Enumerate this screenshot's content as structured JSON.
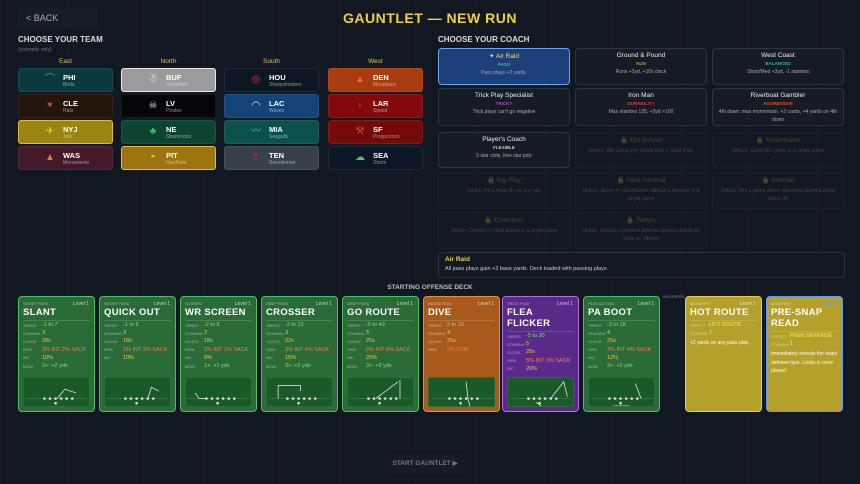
{
  "header": {
    "back_label": "< BACK",
    "title": "GAUNTLET — NEW RUN"
  },
  "team_section": {
    "heading": "CHOOSE YOUR TEAM",
    "note": "(cosmetic only)",
    "divisions": [
      {
        "name": "East",
        "teams": [
          {
            "abbr": "PHI",
            "name": "Birds",
            "bg": "#0b3a3e",
            "icon": "bird-icon"
          },
          {
            "abbr": "CLE",
            "name": "Rats",
            "bg": "#24140a",
            "icon": "rat-icon"
          },
          {
            "abbr": "NYJ",
            "name": "Jets",
            "bg": "#9a8510",
            "icon": "jet-icon"
          },
          {
            "abbr": "WAS",
            "name": "Monuments",
            "bg": "#45192a",
            "icon": "monument-icon"
          }
        ]
      },
      {
        "name": "North",
        "teams": [
          {
            "abbr": "BUF",
            "name": "Snowmen",
            "bg": "#9b9b9b",
            "icon": "snowman-icon",
            "selected": true
          },
          {
            "abbr": "LV",
            "name": "Pirates",
            "bg": "#050608",
            "icon": "skull-icon"
          },
          {
            "abbr": "NE",
            "name": "Shamrocks",
            "bg": "#0d4530",
            "icon": "shamrock-icon"
          },
          {
            "abbr": "PIT",
            "name": "Hardhats",
            "bg": "#9c7510",
            "icon": "hardhat-icon"
          }
        ]
      },
      {
        "name": "South",
        "teams": [
          {
            "abbr": "HOU",
            "name": "Sharpshooters",
            "bg": "#0d1724",
            "icon": "target-icon"
          },
          {
            "abbr": "LAC",
            "name": "Waves",
            "bg": "#124478",
            "icon": "wave-icon"
          },
          {
            "abbr": "MIA",
            "name": "Seagulls",
            "bg": "#0c504c",
            "icon": "seagull-icon"
          },
          {
            "abbr": "TEN",
            "name": "Swordsmen",
            "bg": "#37414c",
            "icon": "sword-icon"
          }
        ]
      },
      {
        "name": "West",
        "teams": [
          {
            "abbr": "DEN",
            "name": "Mountains",
            "bg": "#a83c10",
            "icon": "mountain-icon"
          },
          {
            "abbr": "LAR",
            "name": "Speed",
            "bg": "#820a0a",
            "icon": "speed-icon"
          },
          {
            "abbr": "SF",
            "name": "Prospectors",
            "bg": "#740a0a",
            "icon": "pickaxe-icon"
          },
          {
            "abbr": "SEA",
            "name": "Storm",
            "bg": "#0b1726",
            "icon": "storm-icon"
          }
        ]
      }
    ]
  },
  "coach_section": {
    "heading": "CHOOSE YOUR COACH",
    "coaches": [
      {
        "name": "✦ Air Raid",
        "tag": "PASS",
        "tag_color": "#3ec080",
        "desc": "Pass plays +2 yards.",
        "selected": true
      },
      {
        "name": "Ground & Pound",
        "tag": "RUN",
        "tag_color": "#d08a30",
        "desc": "Runs +2yd, +10s clock"
      },
      {
        "name": "West Coast",
        "tag": "BALANCED",
        "tag_color": "#30b0b0",
        "desc": "Short/Med +3yd, -1 stamina"
      },
      {
        "name": "Trick Play Specialist",
        "tag": "TRICKY",
        "tag_color": "#a050c0",
        "desc": "Trick plays can't go negative"
      },
      {
        "name": "Iron Man",
        "tag": "DURABILITY",
        "tag_color": "#d04040",
        "desc": "Max stamina 125, +2yd >100"
      },
      {
        "name": "Riverboat Gambler",
        "tag": "AGGRESSIVE",
        "tag_color": "#e05030",
        "desc": "4th down: max momentum, +2 cards, +4 yards on 4th down"
      },
      {
        "name": "Player's Coach",
        "tag": "FLEXIBLE",
        "tag_color": "#cccccc",
        "desc": "5 star slots, free star pick"
      },
      {
        "name": "🔒 Old School",
        "desc": "Unlock: Win using only Inside Run + Slant Pass",
        "locked": true
      },
      {
        "name": "🔒 Showmaker",
        "desc": "Unlock: Score 50+ yards in a single game",
        "locked": true
      },
      {
        "name": "🔒 Big Play",
        "desc": "Unlock: Hit a mean 8+ on any play",
        "locked": true
      },
      {
        "name": "🔒 Field General",
        "desc": "Unlock: Score 4+ touchdowns without a turnover in a single game",
        "locked": true
      },
      {
        "name": "🔒 Ironclad",
        "desc": "Unlock: Win a game where opponent stamina drops below 20",
        "locked": true
      },
      {
        "name": "🔒 Champion",
        "desc": "Unlock: Convert 5+ third downs in a single game",
        "locked": true
      },
      {
        "name": "🔒 Tempo",
        "desc": "Unlock: Reduce opponent defense stamina below 20 while on offense",
        "locked": true
      }
    ],
    "info": {
      "title": "Air Raid",
      "desc": "All pass plays gain +2 base yards. Deck loaded with passing plays."
    }
  },
  "deck": {
    "label": "STARTING OFFENSE DECK",
    "modifiers_label": "MODIFIERS",
    "labels": {
      "yards": "YARDS",
      "stamina": "STAMINA",
      "clock": "CLOCK",
      "risk": "RISK",
      "inc": "INC",
      "mom": "MOM",
      "effect": "EFFECT"
    },
    "cards": [
      {
        "category": "SHORT PASS",
        "level": "Level 1",
        "name": "SLANT",
        "yards": "-1 to 7",
        "stamina": "3",
        "clock": "20s",
        "risk": "3% INT  2% SACK",
        "inc": "10%",
        "mom": "2+: +2 yds",
        "theme": "green"
      },
      {
        "category": "SHORT PASS",
        "level": "Level 1",
        "name": "QUICK OUT",
        "yards": "-1 to 5",
        "stamina": "3",
        "clock": "18s",
        "risk": "1% INT  2% SACK",
        "inc": "10%",
        "theme": "green"
      },
      {
        "category": "SCREEN",
        "level": "Level 1",
        "name": "WR SCREEN",
        "yards": "-2 to 8",
        "stamina": "3",
        "clock": "18s",
        "risk": "1% INT  1% SACK",
        "inc": "5%",
        "mom": "1+: +1 yds",
        "theme": "green"
      },
      {
        "category": "DEEP PASS",
        "level": "Level 1",
        "name": "CROSSER",
        "yards": "-2 to 12",
        "stamina": "3",
        "clock": "22s",
        "risk": "3% INT  4% SACK",
        "inc": "15%",
        "mom": "3+: +2 yds",
        "theme": "green"
      },
      {
        "category": "DEEP PASS",
        "level": "Level 1",
        "name": "GO ROUTE",
        "yards": "-5 to 40",
        "stamina": "5",
        "clock": "25s",
        "risk": "6% INT  6% SACK",
        "inc": "25%",
        "mom": "3+: +3 yds",
        "theme": "green"
      },
      {
        "category": "INSIDE RUN",
        "level": "Level 1",
        "name": "DIVE",
        "yards": "2 to 10",
        "stamina": "4",
        "clock": "35s",
        "risk": "0% FUM",
        "theme": "orange"
      },
      {
        "category": "TRICK PLAY",
        "level": "Level 1",
        "name": "FLEA FLICKER",
        "yards": "-5 to 30",
        "stamina": "5",
        "clock": "28s",
        "risk": "5% INT  3% SACK",
        "inc": "20%",
        "theme": "purple"
      },
      {
        "category": "PLAY ACTION",
        "level": "Level 1",
        "name": "PA BOOT",
        "yards": "-3 to 18",
        "stamina": "4",
        "clock": "25s",
        "risk": "3% INT  4% SACK",
        "inc": "12%",
        "mom": "2+: +2 yds",
        "theme": "green"
      }
    ],
    "modifiers": [
      {
        "category": "MODIFIER",
        "level": "Level 1",
        "name": "HOT ROUTE",
        "effect": "HOT ROUTE",
        "stamina": "1",
        "desc": "+2 yards on any pass play."
      },
      {
        "category": "MODIFIER",
        "level": "Level 1",
        "name": "PRE-SNAP READ",
        "effect": "PEEK DEFENSE",
        "stamina": "1",
        "desc": "Immediately reveals the exact defense type. Locks in once placed."
      }
    ]
  },
  "footer": {
    "start_label": "START GAUNTLET ▶"
  }
}
